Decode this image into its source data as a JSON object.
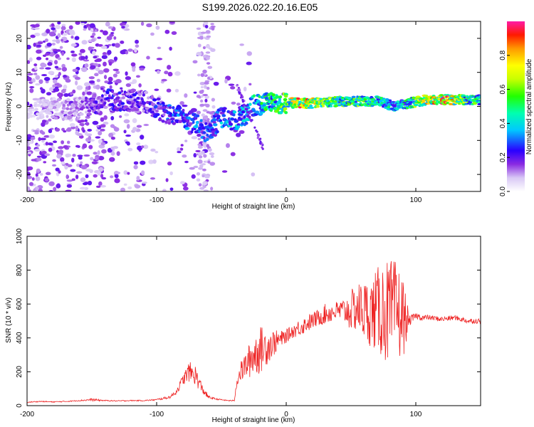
{
  "title": "S199.2026.022.20.16.E05",
  "chart_data": [
    {
      "type": "heatmap",
      "name": "spectrogram",
      "xlabel": "Height of straight line (km)",
      "ylabel": "Frequency (Hz)",
      "xlim": [
        -200,
        150
      ],
      "ylim": [
        -25,
        25
      ],
      "xticks": [
        -200,
        -100,
        0,
        100
      ],
      "yticks": [
        -20,
        -10,
        0,
        10,
        20
      ],
      "colorbar": {
        "label": "Normalized spectral amplitude",
        "range": [
          0,
          1
        ],
        "ticks": [
          0.0,
          0.2,
          0.4,
          0.6,
          0.8
        ]
      },
      "ridge": [
        {
          "x": -200,
          "f": -1.0,
          "amp": 0.05
        },
        {
          "x": -160,
          "f": -0.5,
          "amp": 0.15
        },
        {
          "x": -138,
          "f": 2.0,
          "amp": 0.25
        },
        {
          "x": -110,
          "f": 1.5,
          "amp": 0.22
        },
        {
          "x": -95,
          "f": -1.5,
          "amp": 0.28
        },
        {
          "x": -85,
          "f": -2.5,
          "amp": 0.32
        },
        {
          "x": -70,
          "f": -5.0,
          "amp": 0.35
        },
        {
          "x": -60,
          "f": -8.0,
          "amp": 0.3
        },
        {
          "x": -50,
          "f": -3.0,
          "amp": 0.38
        },
        {
          "x": -40,
          "f": -4.0,
          "amp": 0.4
        },
        {
          "x": -30,
          "f": -2.0,
          "amp": 0.4
        },
        {
          "x": -25,
          "f": 0.5,
          "amp": 0.48
        },
        {
          "x": -10,
          "f": 1.0,
          "amp": 0.55
        },
        {
          "x": 0,
          "f": 1.0,
          "amp": 0.65
        },
        {
          "x": 10,
          "f": 1.0,
          "amp": 0.9
        },
        {
          "x": 25,
          "f": 1.0,
          "amp": 0.75
        },
        {
          "x": 40,
          "f": 1.5,
          "amp": 0.6
        },
        {
          "x": 55,
          "f": 1.5,
          "amp": 0.62
        },
        {
          "x": 70,
          "f": 1.5,
          "amp": 0.55
        },
        {
          "x": 85,
          "f": 0.0,
          "amp": 0.4
        },
        {
          "x": 95,
          "f": 1.0,
          "amp": 0.55
        },
        {
          "x": 110,
          "f": 2.0,
          "amp": 0.8
        },
        {
          "x": 125,
          "f": 2.0,
          "amp": 0.92
        },
        {
          "x": 140,
          "f": 2.0,
          "amp": 0.6
        },
        {
          "x": 150,
          "f": 2.0,
          "amp": 0.55
        }
      ]
    },
    {
      "type": "line",
      "name": "snr",
      "xlabel": "Height of straight line (km)",
      "ylabel": "SNR (10 * v/v)",
      "xlim": [
        -200,
        150
      ],
      "ylim": [
        0,
        1000
      ],
      "xticks": [
        -200,
        -100,
        0,
        100
      ],
      "yticks": [
        0,
        200,
        400,
        600,
        800,
        1000
      ],
      "series": [
        {
          "name": "SNR",
          "color": "#ee2222",
          "x": [
            -200,
            -190,
            -180,
            -170,
            -160,
            -150,
            -140,
            -130,
            -120,
            -110,
            -100,
            -90,
            -85,
            -80,
            -75,
            -70,
            -65,
            -60,
            -55,
            -50,
            -45,
            -40,
            -38,
            -35,
            -30,
            -25,
            -20,
            -15,
            -10,
            -5,
            0,
            5,
            10,
            15,
            20,
            25,
            30,
            35,
            40,
            45,
            50,
            55,
            60,
            65,
            70,
            75,
            80,
            85,
            90,
            95,
            100,
            105,
            110,
            120,
            130,
            140,
            150
          ],
          "values": [
            20,
            25,
            22,
            25,
            30,
            35,
            30,
            28,
            30,
            30,
            35,
            50,
            80,
            150,
            200,
            180,
            100,
            50,
            40,
            35,
            30,
            30,
            150,
            200,
            250,
            300,
            330,
            350,
            370,
            390,
            410,
            440,
            460,
            480,
            500,
            520,
            540,
            550,
            560,
            560,
            560,
            580,
            560,
            550,
            560,
            570,
            540,
            560,
            520,
            500,
            530,
            520,
            520,
            510,
            520,
            500,
            500
          ],
          "noise": [
            3,
            3,
            3,
            3,
            3,
            8,
            3,
            3,
            3,
            3,
            5,
            8,
            15,
            30,
            60,
            60,
            30,
            10,
            5,
            3,
            3,
            3,
            30,
            60,
            90,
            130,
            140,
            110,
            80,
            50,
            40,
            40,
            50,
            50,
            50,
            50,
            60,
            60,
            60,
            80,
            120,
            150,
            180,
            200,
            250,
            300,
            320,
            300,
            250,
            30,
            20,
            20,
            15,
            15,
            15,
            15,
            15
          ]
        }
      ]
    }
  ]
}
